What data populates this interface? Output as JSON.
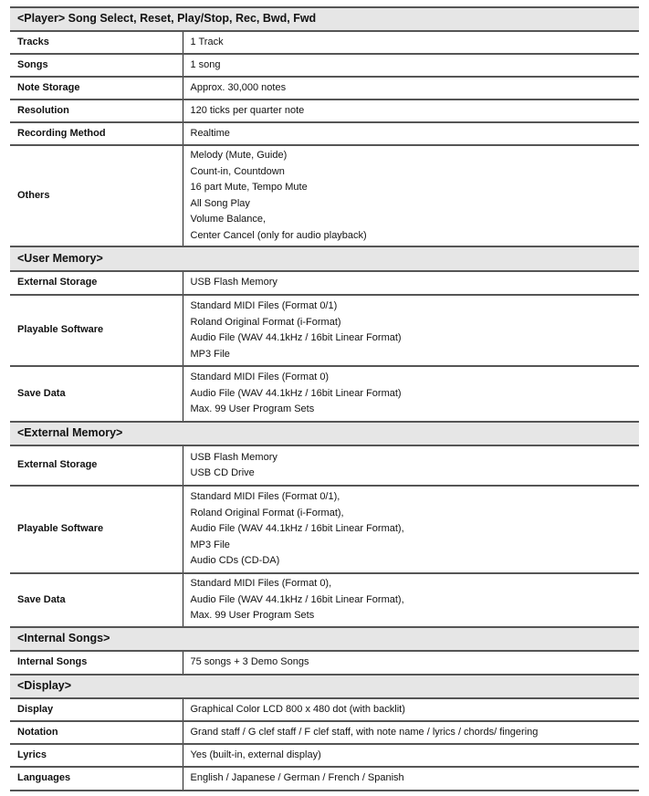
{
  "sections": [
    {
      "title": "<Player> Song Select, Reset, Play/Stop, Rec, Bwd, Fwd",
      "rows": [
        {
          "label": "Tracks",
          "values": [
            "1 Track"
          ]
        },
        {
          "label": "Songs",
          "values": [
            "1 song"
          ]
        },
        {
          "label": "Note Storage",
          "values": [
            "Approx. 30,000 notes"
          ]
        },
        {
          "label": "Resolution",
          "values": [
            "120 ticks per quarter note"
          ]
        },
        {
          "label": "Recording Method",
          "values": [
            "Realtime"
          ]
        },
        {
          "label": "Others",
          "values": [
            "Melody (Mute, Guide)",
            "Count-in, Countdown",
            "16 part Mute, Tempo Mute",
            "All Song Play",
            "Volume Balance,",
            "Center Cancel (only for audio playback)"
          ]
        }
      ]
    },
    {
      "title": "<User Memory>",
      "rows": [
        {
          "label": "External Storage",
          "values": [
            "USB Flash Memory"
          ]
        },
        {
          "label": "Playable Software",
          "values": [
            "Standard MIDI Files (Format 0/1)",
            "Roland Original Format (i-Format)",
            "Audio File (WAV 44.1kHz / 16bit Linear Format)",
            "MP3 File"
          ]
        },
        {
          "label": "Save Data",
          "values": [
            "Standard MIDI Files (Format 0)",
            "Audio File (WAV 44.1kHz / 16bit Linear Format)",
            "Max. 99 User Program Sets"
          ]
        }
      ]
    },
    {
      "title": "<External Memory>",
      "rows": [
        {
          "label": "External Storage",
          "values": [
            "USB Flash Memory",
            "USB CD Drive"
          ]
        },
        {
          "label": "Playable Software",
          "values": [
            "Standard MIDI Files (Format 0/1),",
            "Roland Original Format (i-Format),",
            "Audio File (WAV 44.1kHz / 16bit Linear Format),",
            "MP3 File",
            "Audio CDs (CD-DA)"
          ]
        },
        {
          "label": "Save Data",
          "values": [
            "Standard MIDI Files (Format 0),",
            "Audio File (WAV 44.1kHz / 16bit Linear Format),",
            "Max. 99 User Program Sets"
          ]
        }
      ]
    },
    {
      "title": "<Internal Songs>",
      "rows": [
        {
          "label": "Internal Songs",
          "values": [
            "75 songs + 3 Demo Songs"
          ]
        }
      ]
    },
    {
      "title": "<Display>",
      "rows": [
        {
          "label": "Display",
          "values": [
            "Graphical Color LCD 800 x 480 dot (with backlit)"
          ]
        },
        {
          "label": "Notation",
          "values": [
            "Grand staff / G clef staff / F clef staff, with note name / lyrics / chords/ fingering"
          ]
        },
        {
          "label": "Lyrics",
          "values": [
            "Yes (built-in, external display)"
          ]
        },
        {
          "label": "Languages",
          "values": [
            "English / Japanese / German / French / Spanish"
          ]
        }
      ]
    }
  ]
}
